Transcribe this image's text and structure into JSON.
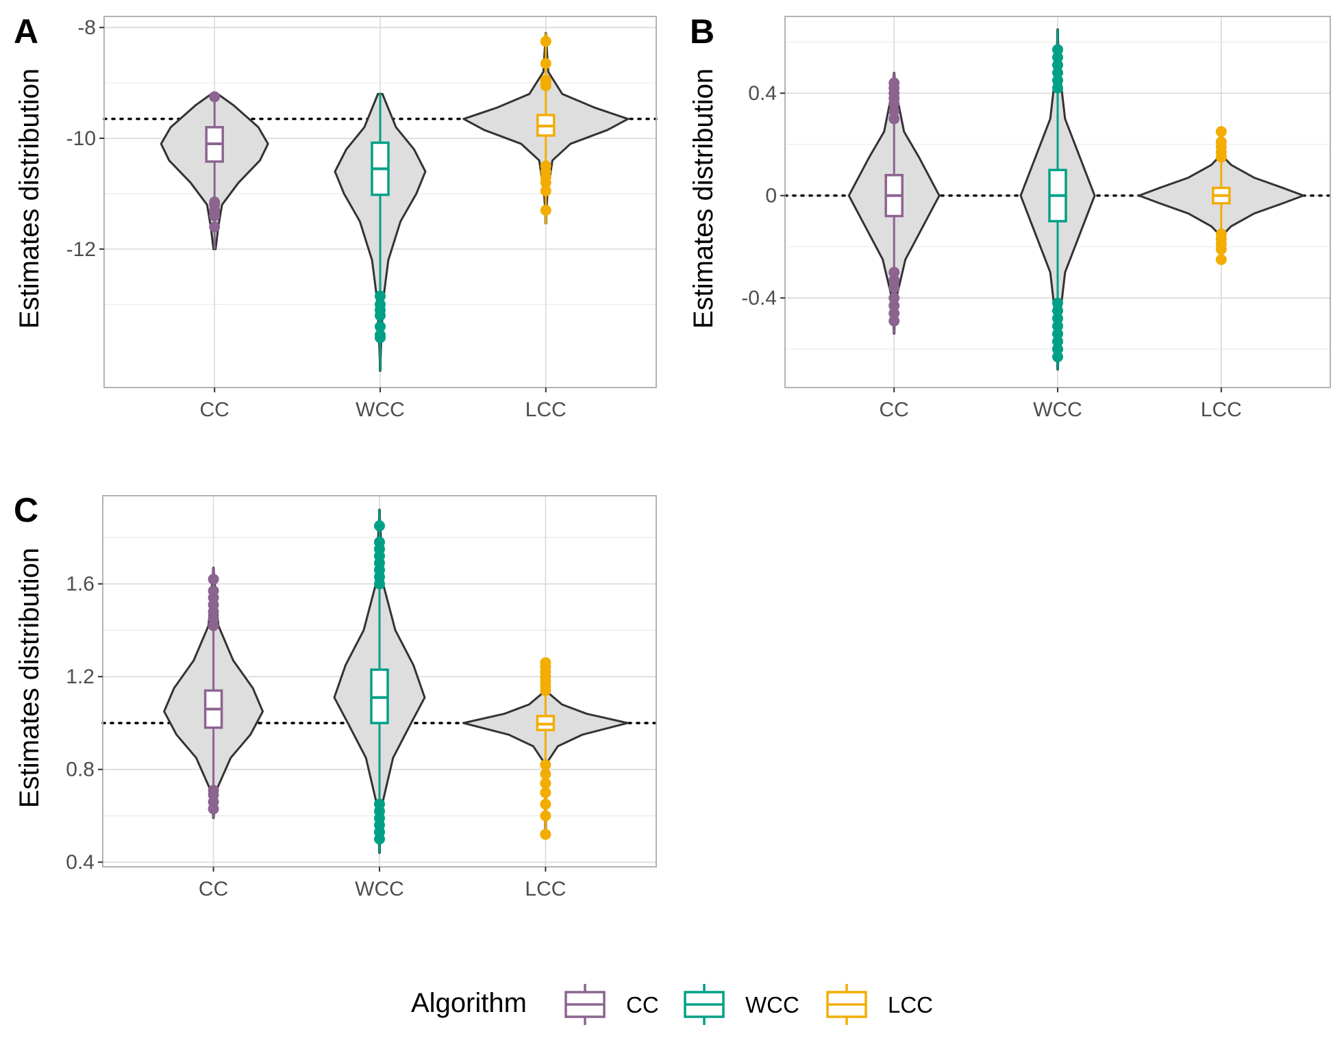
{
  "colors": {
    "CC": "#8C6490",
    "WCC": "#00A087",
    "LCC": "#F2AD00",
    "violin_fill": "#DEDEDE",
    "violin_stroke": "#333333"
  },
  "legend": {
    "title": "Algorithm",
    "items": [
      "CC",
      "WCC",
      "LCC"
    ]
  },
  "chart_data": [
    {
      "type": "violin",
      "panel": "A",
      "ylabel": "Estimates distribution",
      "categories": [
        "CC",
        "WCC",
        "LCC"
      ],
      "yticks": [
        -8,
        -10,
        -12
      ],
      "ylim": [
        -14.5,
        -7.8
      ],
      "reference_line": -9.65,
      "grid": true,
      "series": [
        {
          "name": "CC",
          "min": -12.0,
          "q1": -10.42,
          "median": -10.1,
          "q3": -9.8,
          "max": -9.2,
          "width": 0.65,
          "outliers": [
            -9.25,
            -11.15,
            -11.2,
            -11.3,
            -11.4,
            -11.6
          ],
          "violin": [
            [
              -12.0,
              0.02
            ],
            [
              -11.6,
              0.07
            ],
            [
              -11.2,
              0.14
            ],
            [
              -10.8,
              0.45
            ],
            [
              -10.4,
              0.85
            ],
            [
              -10.1,
              1.0
            ],
            [
              -9.8,
              0.82
            ],
            [
              -9.4,
              0.35
            ],
            [
              -9.2,
              0.06
            ]
          ]
        },
        {
          "name": "WCC",
          "min": -14.2,
          "q1": -11.02,
          "median": -10.55,
          "q3": -10.08,
          "max": -9.18,
          "width": 0.55,
          "outliers": [
            -12.85,
            -13.0,
            -13.1,
            -13.2,
            -13.4,
            -13.55,
            -13.6
          ],
          "violin": [
            [
              -14.2,
              0.0
            ],
            [
              -13.5,
              0.03
            ],
            [
              -12.9,
              0.07
            ],
            [
              -12.2,
              0.18
            ],
            [
              -11.5,
              0.45
            ],
            [
              -11.0,
              0.8
            ],
            [
              -10.6,
              1.0
            ],
            [
              -10.2,
              0.75
            ],
            [
              -9.8,
              0.35
            ],
            [
              -9.2,
              0.05
            ]
          ]
        },
        {
          "name": "LCC",
          "min": -11.55,
          "q1": -9.95,
          "median": -9.78,
          "q3": -9.58,
          "max": -8.1,
          "width": 1.0,
          "outliers": [
            -8.25,
            -8.65,
            -8.95,
            -9.0,
            -9.05,
            -10.5,
            -10.6,
            -10.7,
            -10.8,
            -10.95,
            -11.3
          ],
          "violin": [
            [
              -11.5,
              0.0
            ],
            [
              -11.0,
              0.02
            ],
            [
              -10.4,
              0.08
            ],
            [
              -10.1,
              0.3
            ],
            [
              -9.85,
              0.75
            ],
            [
              -9.65,
              1.0
            ],
            [
              -9.45,
              0.6
            ],
            [
              -9.2,
              0.2
            ],
            [
              -8.8,
              0.03
            ],
            [
              -8.1,
              0.0
            ]
          ]
        }
      ]
    },
    {
      "type": "violin",
      "panel": "B",
      "ylabel": "Estimates distribution",
      "categories": [
        "CC",
        "WCC",
        "LCC"
      ],
      "yticks": [
        0.4,
        0.0,
        -0.4
      ],
      "ylim": [
        -0.75,
        0.7
      ],
      "reference_line": 0.0,
      "grid": true,
      "series": [
        {
          "name": "CC",
          "min": -0.54,
          "q1": -0.08,
          "median": 0.0,
          "q3": 0.08,
          "max": 0.48,
          "width": 0.55,
          "outliers": [
            0.3,
            0.33,
            0.36,
            0.38,
            0.4,
            0.42,
            0.44,
            -0.3,
            -0.33,
            -0.36,
            -0.4,
            -0.43,
            -0.46,
            -0.49
          ],
          "violin": [
            [
              -0.54,
              0.0
            ],
            [
              -0.4,
              0.05
            ],
            [
              -0.25,
              0.25
            ],
            [
              -0.15,
              0.55
            ],
            [
              0.0,
              1.0
            ],
            [
              0.15,
              0.55
            ],
            [
              0.25,
              0.22
            ],
            [
              0.4,
              0.05
            ],
            [
              0.48,
              0.0
            ]
          ]
        },
        {
          "name": "WCC",
          "min": -0.68,
          "q1": -0.1,
          "median": 0.0,
          "q3": 0.1,
          "max": 0.65,
          "width": 0.45,
          "outliers": [
            0.42,
            0.45,
            0.48,
            0.51,
            0.54,
            0.57,
            -0.42,
            -0.45,
            -0.48,
            -0.51,
            -0.54,
            -0.57,
            -0.6,
            -0.63
          ],
          "violin": [
            [
              -0.68,
              0.0
            ],
            [
              -0.5,
              0.04
            ],
            [
              -0.3,
              0.2
            ],
            [
              -0.15,
              0.6
            ],
            [
              0.0,
              1.0
            ],
            [
              0.15,
              0.6
            ],
            [
              0.3,
              0.2
            ],
            [
              0.5,
              0.04
            ],
            [
              0.65,
              0.0
            ]
          ]
        },
        {
          "name": "LCC",
          "min": -0.25,
          "q1": -0.03,
          "median": 0.0,
          "q3": 0.03,
          "max": 0.25,
          "width": 1.0,
          "outliers": [
            0.15,
            0.17,
            0.19,
            0.21,
            0.25,
            -0.15,
            -0.17,
            -0.19,
            -0.21,
            -0.25
          ],
          "violin": [
            [
              -0.16,
              0.0
            ],
            [
              -0.12,
              0.12
            ],
            [
              -0.07,
              0.4
            ],
            [
              -0.03,
              0.75
            ],
            [
              0.0,
              1.0
            ],
            [
              0.03,
              0.75
            ],
            [
              0.07,
              0.4
            ],
            [
              0.12,
              0.12
            ],
            [
              0.16,
              0.0
            ]
          ]
        }
      ]
    },
    {
      "type": "violin",
      "panel": "C",
      "ylabel": "Estimates distribution",
      "categories": [
        "CC",
        "WCC",
        "LCC"
      ],
      "yticks": [
        1.6,
        1.2,
        0.8,
        0.4
      ],
      "ylim": [
        0.38,
        1.98
      ],
      "reference_line": 1.0,
      "grid": true,
      "series": [
        {
          "name": "CC",
          "min": 0.59,
          "q1": 0.98,
          "median": 1.06,
          "q3": 1.14,
          "max": 1.67,
          "width": 0.6,
          "outliers": [
            1.42,
            1.45,
            1.48,
            1.51,
            1.54,
            1.57,
            1.62,
            0.63,
            0.66,
            0.69,
            0.71
          ],
          "violin": [
            [
              0.59,
              0.0
            ],
            [
              0.72,
              0.08
            ],
            [
              0.85,
              0.35
            ],
            [
              0.95,
              0.75
            ],
            [
              1.05,
              1.0
            ],
            [
              1.15,
              0.8
            ],
            [
              1.27,
              0.4
            ],
            [
              1.42,
              0.1
            ],
            [
              1.67,
              0.0
            ]
          ]
        },
        {
          "name": "WCC",
          "min": 0.44,
          "q1": 1.0,
          "median": 1.11,
          "q3": 1.23,
          "max": 1.92,
          "width": 0.55,
          "outliers": [
            1.6,
            1.63,
            1.66,
            1.69,
            1.72,
            1.75,
            1.78,
            1.85,
            0.5,
            0.53,
            0.56,
            0.59,
            0.62,
            0.65
          ],
          "violin": [
            [
              0.44,
              0.0
            ],
            [
              0.65,
              0.06
            ],
            [
              0.85,
              0.3
            ],
            [
              1.0,
              0.7
            ],
            [
              1.11,
              1.0
            ],
            [
              1.25,
              0.75
            ],
            [
              1.4,
              0.35
            ],
            [
              1.6,
              0.08
            ],
            [
              1.92,
              0.0
            ]
          ]
        },
        {
          "name": "LCC",
          "min": 0.51,
          "q1": 0.97,
          "median": 0.995,
          "q3": 1.03,
          "max": 1.26,
          "width": 1.0,
          "outliers": [
            1.14,
            1.16,
            1.18,
            1.2,
            1.22,
            1.24,
            1.26,
            0.6,
            0.65,
            0.7,
            0.74,
            0.78,
            0.82,
            0.52
          ],
          "violin": [
            [
              0.82,
              0.0
            ],
            [
              0.9,
              0.15
            ],
            [
              0.95,
              0.45
            ],
            [
              1.0,
              1.0
            ],
            [
              1.04,
              0.5
            ],
            [
              1.08,
              0.2
            ],
            [
              1.14,
              0.0
            ]
          ]
        }
      ]
    }
  ]
}
